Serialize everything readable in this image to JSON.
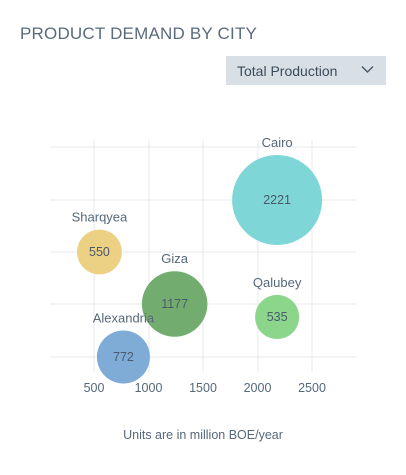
{
  "page_title": "PRODUCT DEMAND BY CITY",
  "filter": {
    "selected": "Total Production"
  },
  "footnote": "Units are in million BOE/year",
  "chart_data": {
    "type": "bubble",
    "title": "PRODUCT DEMAND BY CITY",
    "xlabel": "",
    "ylabel": "",
    "xlim": [
      250,
      2900
    ],
    "x_ticks": [
      500,
      1000,
      1500,
      2000,
      2500
    ],
    "grid": true,
    "points": [
      {
        "label": "Cairo",
        "x": 2180,
        "y": 5,
        "size": 2221,
        "color": "#7fd6d6"
      },
      {
        "label": "Sharqyea",
        "x": 550,
        "y": 4,
        "size": 550,
        "color": "#ecd083"
      },
      {
        "label": "Giza",
        "x": 1240,
        "y": 3,
        "size": 1177,
        "color": "#72ad6f"
      },
      {
        "label": "Qalubey",
        "x": 2180,
        "y": 2.7,
        "size": 535,
        "color": "#8cd68c"
      },
      {
        "label": "Alexandria",
        "x": 770,
        "y": 2,
        "size": 772,
        "color": "#7eacd7"
      }
    ]
  }
}
